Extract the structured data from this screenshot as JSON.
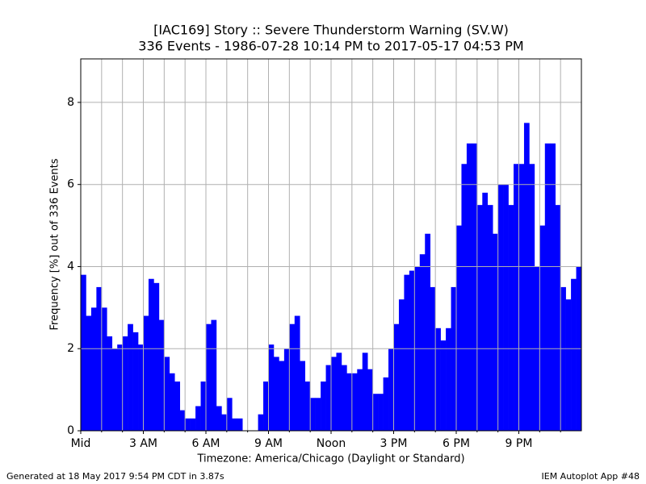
{
  "chart_data": {
    "type": "bar",
    "title": "[IAC169] Story :: Severe Thunderstorm Warning (SV.W)",
    "subtitle": "336 Events - 1986-07-28 10:14 PM to 2017-05-17 04:53 PM",
    "y_label": "Frequency [%] out of 336 Events",
    "x_label": "Timezone: America/Chicago (Daylight or Standard)",
    "footer_left": "Generated at 18 May 2017 9:54 PM CDT in 3.87s",
    "footer_right": "IEM Autoplot App #48",
    "color": "#0000ff",
    "grid": true,
    "xlim": [
      0,
      1440
    ],
    "ylim": [
      0,
      9.06
    ],
    "yticks": [
      0,
      2,
      4,
      6,
      8
    ],
    "xticks": [
      {
        "value": 0,
        "label": "Mid"
      },
      {
        "value": 180,
        "label": "3 AM"
      },
      {
        "value": 360,
        "label": "6 AM"
      },
      {
        "value": 540,
        "label": "9 AM"
      },
      {
        "value": 720,
        "label": "Noon"
      },
      {
        "value": 900,
        "label": "3 PM"
      },
      {
        "value": 1080,
        "label": "6 PM"
      },
      {
        "value": 1260,
        "label": "9 PM"
      }
    ],
    "minor_xticks": [
      60,
      120,
      240,
      300,
      420,
      480,
      600,
      660,
      780,
      840,
      960,
      1020,
      1140,
      1200,
      1320,
      1380
    ],
    "x": [
      0,
      15,
      30,
      45,
      60,
      75,
      90,
      105,
      120,
      135,
      150,
      165,
      180,
      195,
      210,
      225,
      240,
      255,
      270,
      285,
      300,
      315,
      330,
      345,
      360,
      375,
      390,
      405,
      420,
      435,
      450,
      465,
      480,
      495,
      510,
      525,
      540,
      555,
      570,
      585,
      600,
      615,
      630,
      645,
      660,
      675,
      690,
      705,
      720,
      735,
      750,
      765,
      780,
      795,
      810,
      825,
      840,
      855,
      870,
      885,
      900,
      915,
      930,
      945,
      960,
      975,
      990,
      1005,
      1020,
      1035,
      1050,
      1065,
      1080,
      1095,
      1110,
      1125,
      1140,
      1155,
      1170,
      1185,
      1200,
      1215,
      1230,
      1245,
      1260,
      1275,
      1290,
      1305,
      1320,
      1335,
      1350,
      1365,
      1380,
      1395,
      1410,
      1425
    ],
    "values": [
      3.8,
      2.8,
      3.0,
      3.5,
      3.0,
      2.3,
      2.0,
      2.1,
      2.3,
      2.6,
      2.4,
      2.1,
      2.8,
      3.7,
      3.6,
      2.7,
      1.8,
      1.4,
      1.2,
      0.5,
      0.3,
      0.3,
      0.6,
      1.2,
      2.6,
      2.7,
      0.6,
      0.4,
      0.8,
      0.3,
      0.3,
      0,
      0,
      0,
      0.4,
      1.2,
      2.1,
      1.8,
      1.7,
      2.0,
      2.6,
      2.8,
      1.7,
      1.2,
      0.8,
      0.8,
      1.2,
      1.6,
      1.8,
      1.9,
      1.6,
      1.4,
      1.4,
      1.5,
      1.9,
      1.5,
      0.9,
      0.9,
      1.3,
      2.0,
      2.6,
      3.2,
      3.8,
      3.9,
      4.0,
      4.3,
      4.8,
      3.5,
      2.5,
      2.2,
      2.5,
      3.5,
      5.0,
      6.5,
      7.0,
      7.0,
      5.5,
      5.8,
      5.5,
      4.8,
      6.0,
      6.0,
      5.5,
      6.5,
      6.5,
      7.5,
      6.5,
      4.0,
      5.0,
      7.0,
      7.0,
      5.5,
      3.5,
      3.2,
      3.7,
      4.0
    ]
  }
}
